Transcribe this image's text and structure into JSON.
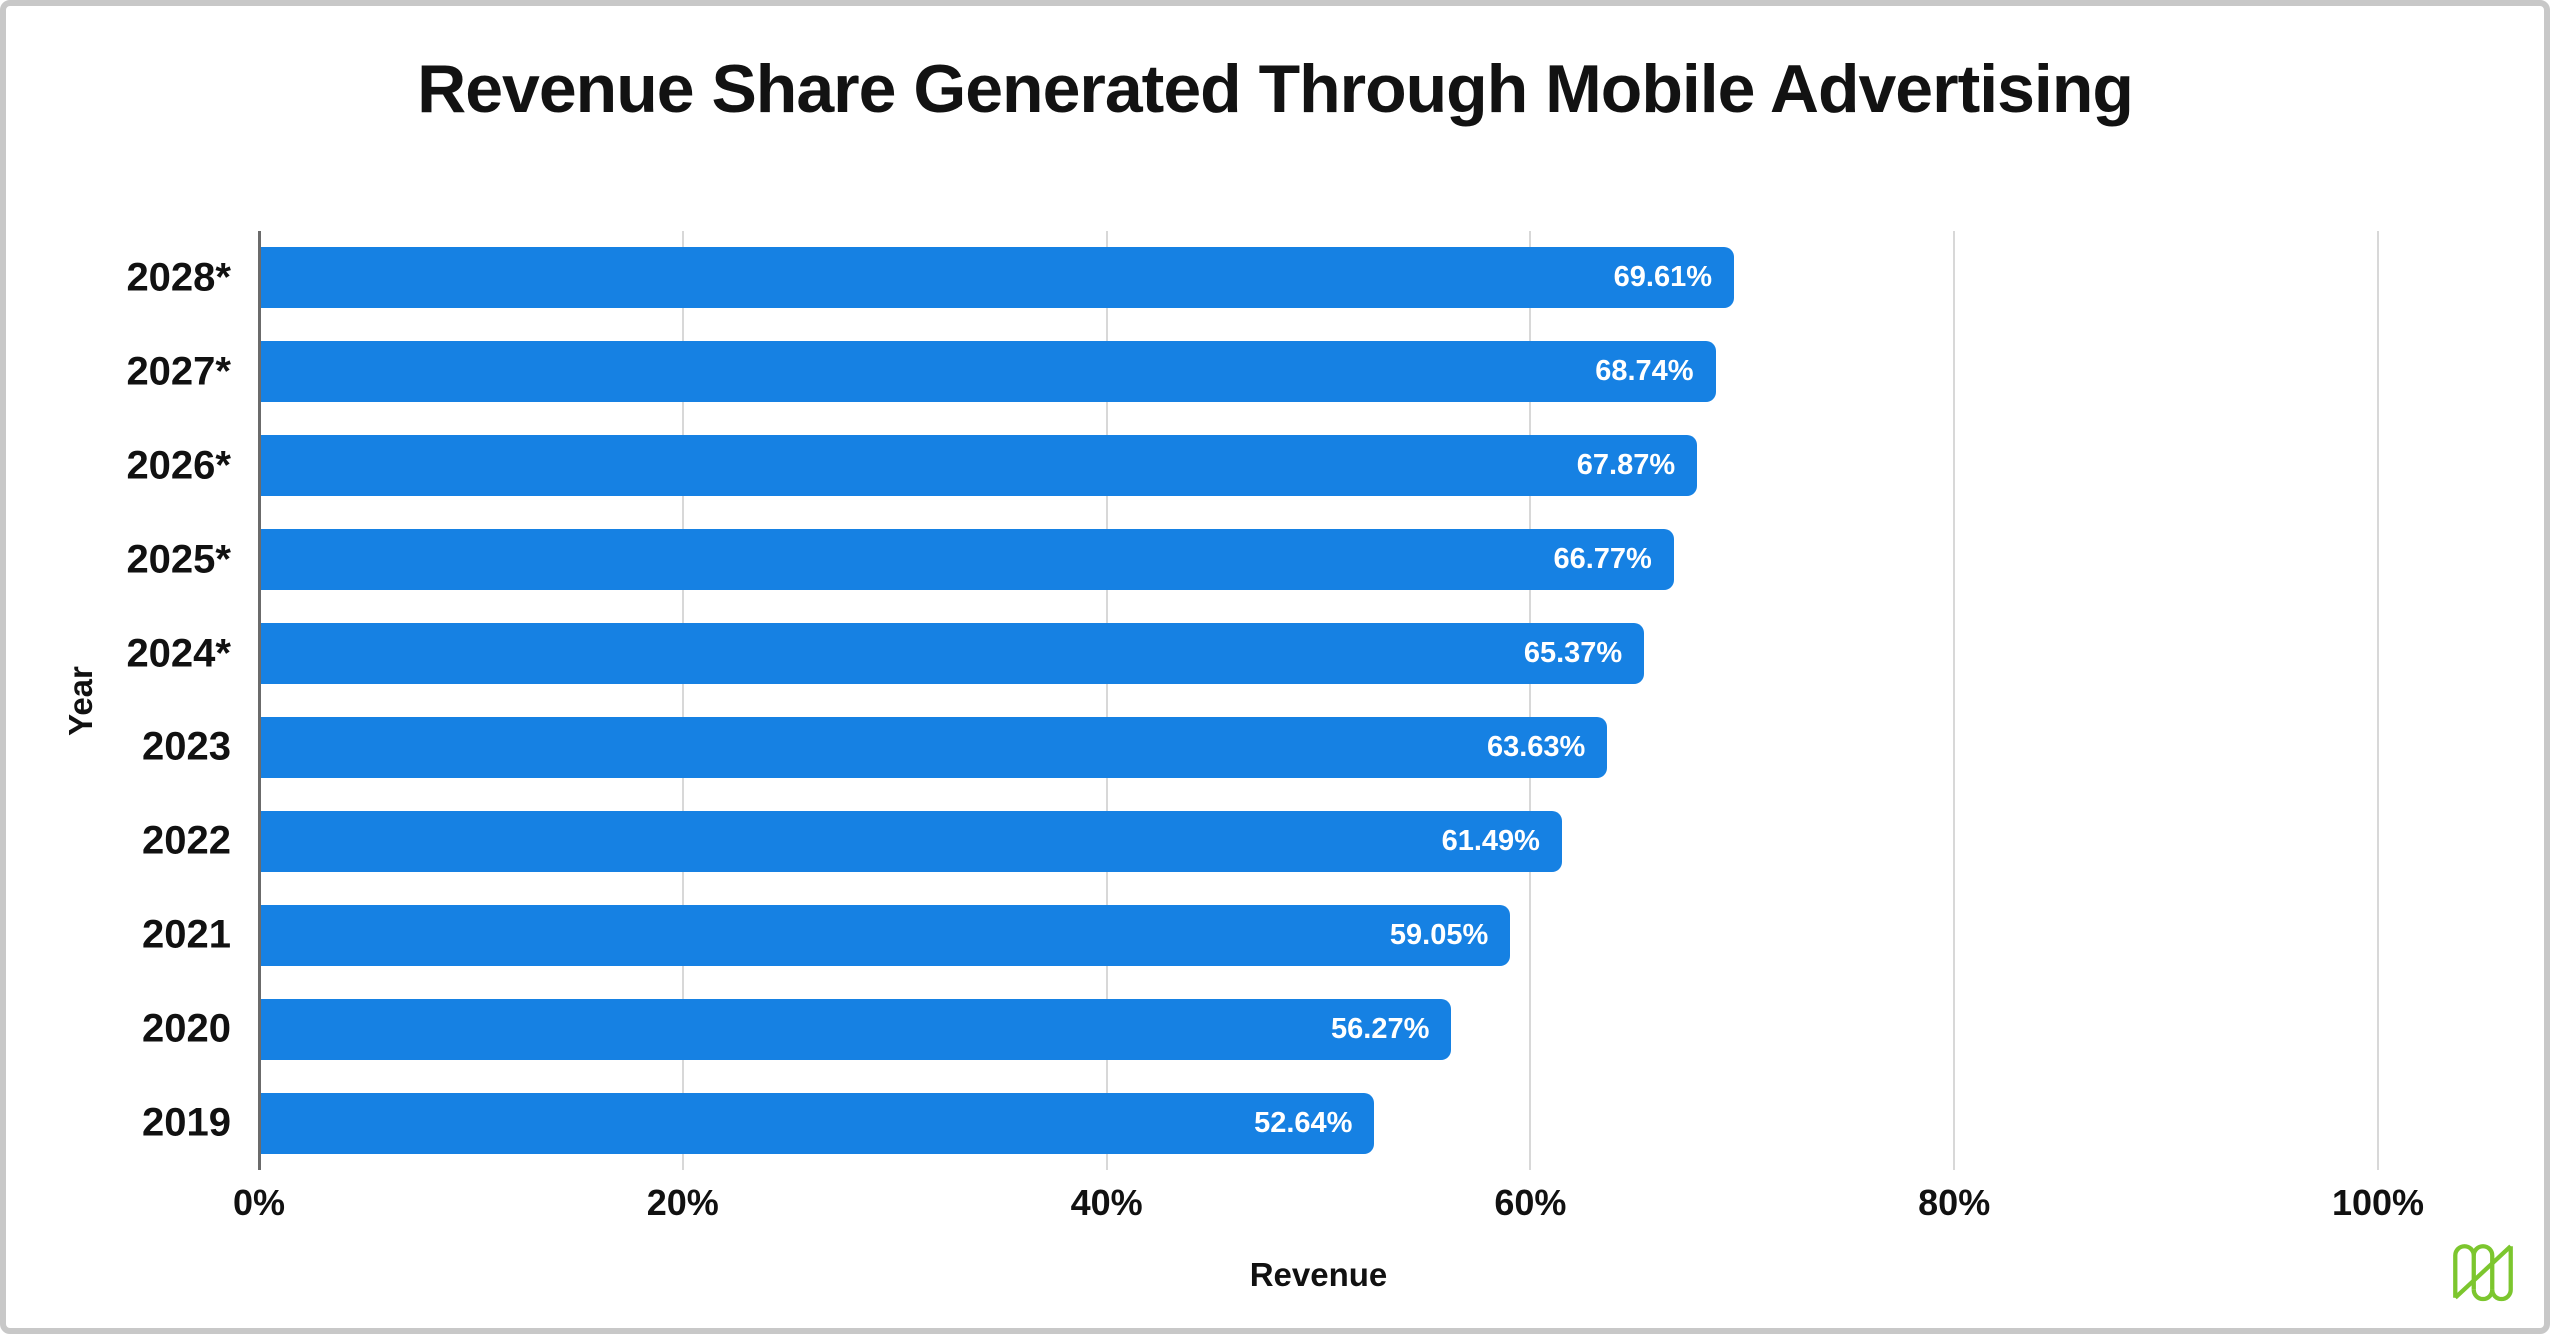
{
  "chart_data": {
    "type": "bar",
    "orientation": "horizontal",
    "title": "Revenue Share Generated Through Mobile Advertising",
    "xlabel": "Revenue",
    "ylabel": "Year",
    "categories": [
      "2028*",
      "2027*",
      "2026*",
      "2025*",
      "2024*",
      "2023",
      "2022",
      "2021",
      "2020",
      "2019"
    ],
    "values": [
      69.61,
      68.74,
      67.87,
      66.77,
      65.37,
      63.63,
      61.49,
      59.05,
      56.27,
      52.64
    ],
    "value_labels": [
      "69.61%",
      "68.74%",
      "67.87%",
      "66.77%",
      "65.37%",
      "63.63%",
      "61.49%",
      "59.05%",
      "56.27%",
      "52.64%"
    ],
    "x_ticks": [
      "0%",
      "20%",
      "40%",
      "60%",
      "80%",
      "100%"
    ],
    "x_tick_values": [
      0,
      20,
      40,
      60,
      80,
      100
    ],
    "xlim": [
      0,
      100
    ],
    "grid": "vertical",
    "legend": "none",
    "colors": {
      "bar": "#1681e3",
      "bar_label_text": "#ffffff",
      "gridline": "#d8d8d8",
      "axis_line": "#6b6b6b",
      "text": "#111111",
      "background": "#ffffff",
      "frame_border": "#c8c8c8"
    }
  },
  "branding": {
    "logo_name": "folded-map-logo",
    "logo_color": "#7cc62e"
  }
}
